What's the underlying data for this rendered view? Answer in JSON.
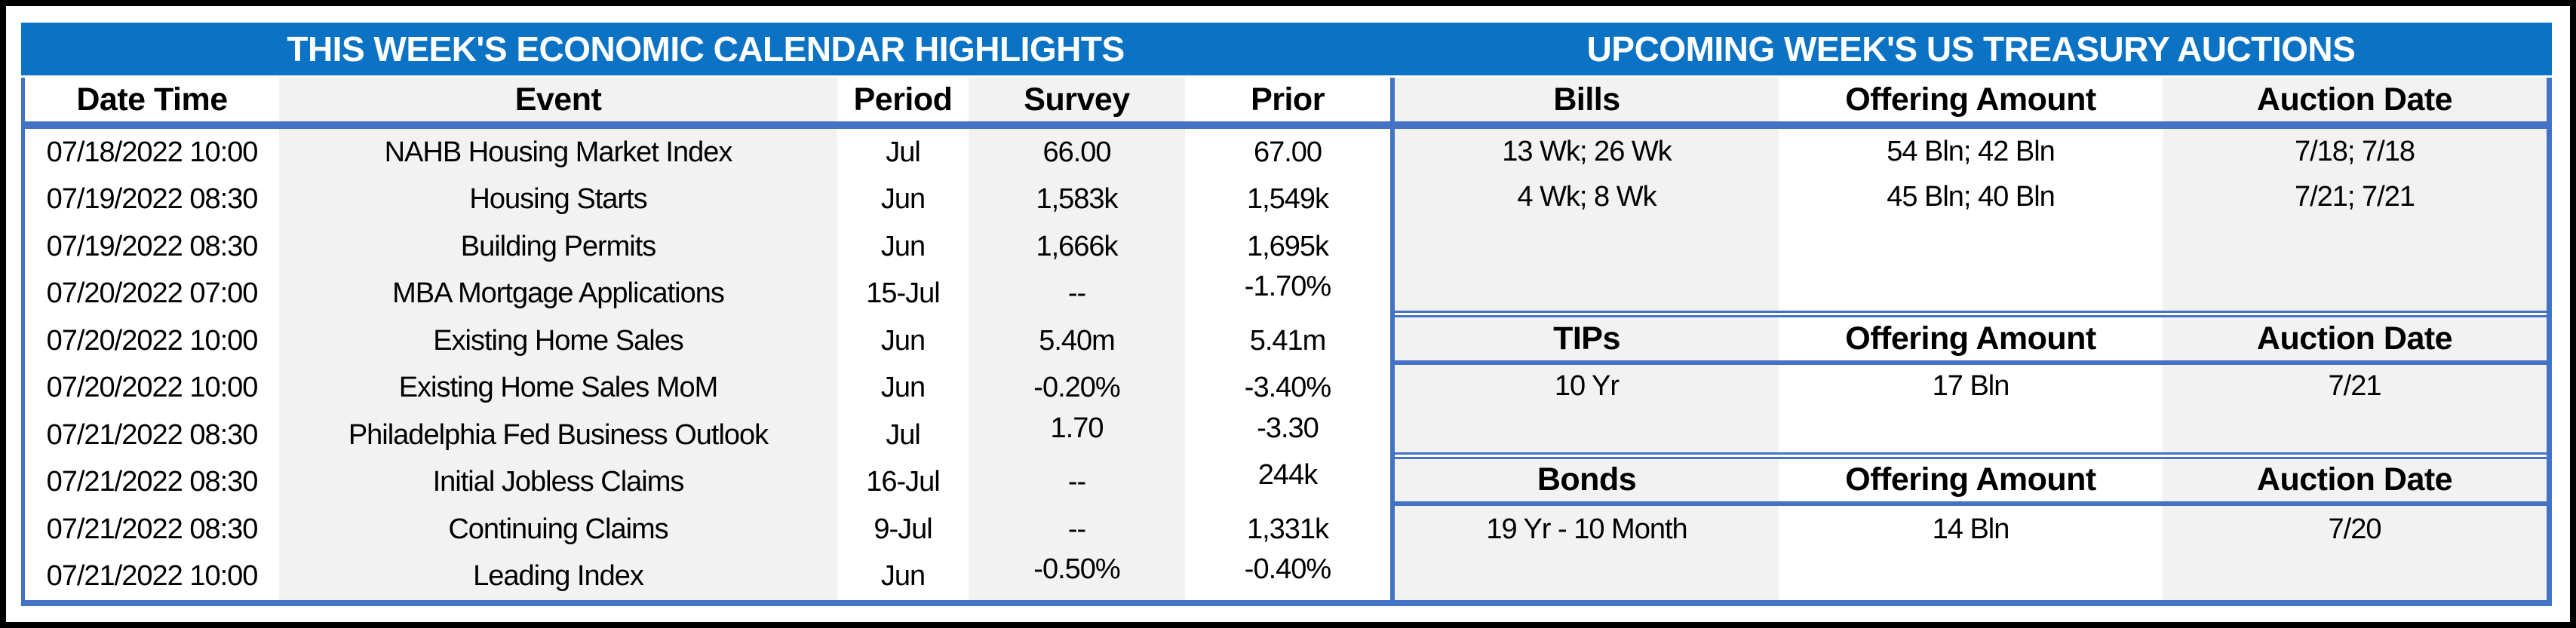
{
  "chart_data": [
    {
      "type": "table",
      "title": "THIS WEEK'S ECONOMIC CALENDAR HIGHLIGHTS",
      "columns": [
        "Date Time",
        "Event",
        "Period",
        "Survey",
        "Prior"
      ],
      "rows": [
        [
          "07/18/2022 10:00",
          "NAHB Housing Market Index",
          "Jul",
          "66.00",
          "67.00"
        ],
        [
          "07/19/2022 08:30",
          "Housing Starts",
          "Jun",
          "1,583k",
          "1,549k"
        ],
        [
          "07/19/2022 08:30",
          "Building Permits",
          "Jun",
          "1,666k",
          "1,695k"
        ],
        [
          "07/20/2022 07:00",
          "MBA Mortgage Applications",
          "15-Jul",
          "--",
          "-1.70%"
        ],
        [
          "07/20/2022 10:00",
          "Existing Home Sales",
          "Jun",
          "5.40m",
          "5.41m"
        ],
        [
          "07/20/2022 10:00",
          "Existing Home Sales MoM",
          "Jun",
          "-0.20%",
          "-3.40%"
        ],
        [
          "07/21/2022 08:30",
          "Philadelphia Fed Business Outlook",
          "Jul",
          "1.70",
          "-3.30"
        ],
        [
          "07/21/2022 08:30",
          "Initial Jobless Claims",
          "16-Jul",
          "--",
          "244k"
        ],
        [
          "07/21/2022 08:30",
          "Continuing Claims",
          "9-Jul",
          "--",
          "1,331k"
        ],
        [
          "07/21/2022 10:00",
          "Leading Index",
          "Jun",
          "-0.50%",
          "-0.40%"
        ]
      ]
    },
    {
      "type": "table",
      "title": "UPCOMING WEEK'S US TREASURY AUCTIONS",
      "sections": {
        "bills": {
          "columns": [
            "Bills",
            "Offering Amount",
            "Auction Date"
          ],
          "rows": [
            [
              "13 Wk; 26 Wk",
              "54 Bln; 42 Bln",
              "7/18; 7/18"
            ],
            [
              "4 Wk; 8 Wk",
              "45 Bln; 40 Bln",
              "7/21; 7/21"
            ]
          ]
        },
        "tips": {
          "columns": [
            "TIPs",
            "Offering Amount",
            "Auction Date"
          ],
          "rows": [
            [
              "10 Yr",
              "17 Bln",
              "7/21"
            ]
          ]
        },
        "bonds": {
          "columns": [
            "Bonds",
            "Offering Amount",
            "Auction Date"
          ],
          "rows": [
            [
              "19 Yr - 10 Month",
              "14 Bln",
              "7/20"
            ]
          ]
        }
      }
    }
  ],
  "colors": {
    "title_bar_blue": "#0B72C4",
    "table_border_blue": "#4472C4",
    "stripe_gray": "#F2F2F2",
    "frame_border": "#000000"
  }
}
